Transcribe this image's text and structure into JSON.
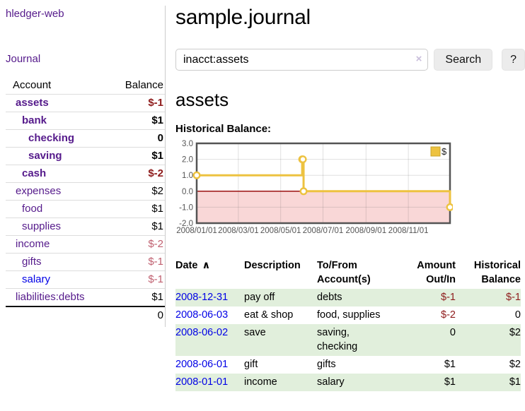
{
  "app": {
    "name": "hledger-web"
  },
  "sidebar": {
    "journal_link": "Journal",
    "table": {
      "headers": [
        "Account",
        "Balance"
      ],
      "rows": [
        {
          "account": "assets",
          "balance": "$-1",
          "depth": 0,
          "bold": true,
          "neg": "strong"
        },
        {
          "account": "bank",
          "balance": "$1",
          "depth": 1,
          "bold": true
        },
        {
          "account": "checking",
          "balance": "0",
          "depth": 2,
          "bold": true
        },
        {
          "account": "saving",
          "balance": "$1",
          "depth": 2,
          "bold": true
        },
        {
          "account": "cash",
          "balance": "$-2",
          "depth": 1,
          "bold": true,
          "neg": "strong"
        },
        {
          "account": "expenses",
          "balance": "$2",
          "depth": 0
        },
        {
          "account": "food",
          "balance": "$1",
          "depth": 1
        },
        {
          "account": "supplies",
          "balance": "$1",
          "depth": 1
        },
        {
          "account": "income",
          "balance": "$-2",
          "depth": 0,
          "neg": "light"
        },
        {
          "account": "gifts",
          "balance": "$-1",
          "depth": 1,
          "neg": "light"
        },
        {
          "account": "salary",
          "balance": "$-1",
          "depth": 1,
          "neg": "light",
          "blue": true
        },
        {
          "account": "liabilities:debts",
          "balance": "$1",
          "depth": 0
        }
      ],
      "total": "0"
    }
  },
  "main": {
    "title": "sample.journal",
    "search": {
      "value": "inacct:assets",
      "clear_icon": "×",
      "button": "Search",
      "help_button": "?"
    },
    "account_heading": "assets",
    "chart_heading": "Historical Balance:"
  },
  "chart_data": {
    "type": "line",
    "step": true,
    "title": "Historical Balance",
    "series": [
      {
        "name": "$",
        "color": "#edc240",
        "points": [
          [
            "2008-01-01",
            1
          ],
          [
            "2008-06-01",
            2
          ],
          [
            "2008-06-02",
            2
          ],
          [
            "2008-06-03",
            0
          ],
          [
            "2008-12-31",
            -1
          ]
        ]
      }
    ],
    "x_range": [
      "2008-01-01",
      "2008-12-31"
    ],
    "x_ticks": [
      "2008/01/01",
      "2008/03/01",
      "2008/05/01",
      "2008/07/01",
      "2008/09/01",
      "2008/11/01"
    ],
    "y_ticks": [
      "3.0",
      "2.0",
      "1.0",
      "0.0",
      "-1.0",
      "-2.0"
    ],
    "ylim": [
      -2,
      3
    ],
    "grid": true,
    "legend": {
      "label": "$",
      "position": "top-right"
    },
    "negative_region_color": "#f9d7d7",
    "zero_line_color": "#9a1010",
    "border_color": "#545454"
  },
  "register": {
    "sort_icon": "∧",
    "columns": [
      {
        "lines": [
          "Date"
        ],
        "align": "left",
        "sorted": true
      },
      {
        "lines": [
          "Description"
        ],
        "align": "left"
      },
      {
        "lines": [
          "To/From",
          "Account(s)"
        ],
        "align": "left"
      },
      {
        "lines": [
          "Amount",
          "Out/In"
        ],
        "align": "right"
      },
      {
        "lines": [
          "Historical",
          "Balance"
        ],
        "align": "right"
      }
    ],
    "rows": [
      {
        "date": "2008-12-31",
        "description": "pay off",
        "accounts": "debts",
        "amount": "$-1",
        "amount_negative": true,
        "balance": "$-1",
        "balance_negative": true
      },
      {
        "date": "2008-06-03",
        "description": "eat & shop",
        "accounts": "food, supplies",
        "amount": "$-2",
        "amount_negative": true,
        "balance": "0",
        "balance_negative": false
      },
      {
        "date": "2008-06-02",
        "description": "save",
        "accounts": "saving, checking",
        "amount": "0",
        "amount_negative": false,
        "balance": "$2",
        "balance_negative": false
      },
      {
        "date": "2008-06-01",
        "description": "gift",
        "accounts": "gifts",
        "amount": "$1",
        "amount_negative": false,
        "balance": "$2",
        "balance_negative": false
      },
      {
        "date": "2008-01-01",
        "description": "income",
        "accounts": "salary",
        "amount": "$1",
        "amount_negative": false,
        "balance": "$1",
        "balance_negative": false
      }
    ]
  },
  "colors": {
    "link_purple": "#551a8b",
    "link_blue": "#0000e6",
    "negative": "#8e1b1b",
    "negative_light": "#c06070",
    "row_stripe_green": "#e1efdc",
    "chart_line_gold": "#edc240",
    "negative_region_pink": "#f9d7d7",
    "zero_line_red": "#9a1010"
  }
}
